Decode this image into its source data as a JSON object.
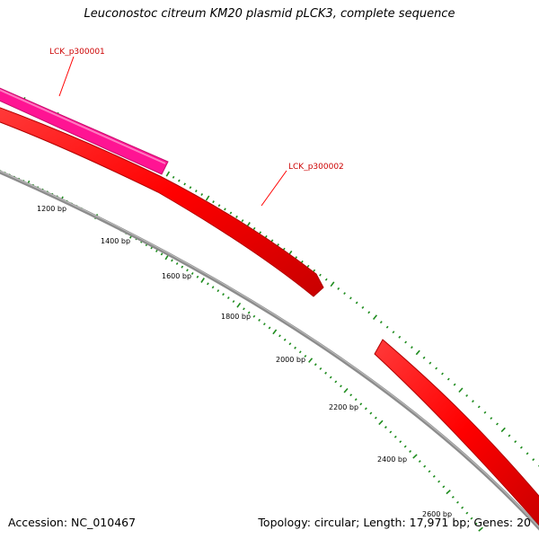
{
  "title": "Leuconostoc citreum KM20 plasmid pLCK3, complete sequence",
  "footer": {
    "accession": "Accession: NC_010467",
    "summary": "Topology: circular; Length: 17,971 bp; Genes: 20"
  },
  "map": {
    "sequence_length_bp": 17971,
    "topology": "circular",
    "colors": {
      "backbone": "#8c8c8c",
      "forward_gene": "#ff0000",
      "highlight_gene": "#ff1493",
      "gc_ticks": "#1e8c1e",
      "label_line": "#ff0000",
      "label_text": "#cc0000"
    },
    "scale_labels": [
      {
        "bp": 1200,
        "text": "1200 bp"
      },
      {
        "bp": 1400,
        "text": "1400 bp"
      },
      {
        "bp": 1600,
        "text": "1600 bp"
      },
      {
        "bp": 1800,
        "text": "1800 bp"
      },
      {
        "bp": 2000,
        "text": "2000 bp"
      },
      {
        "bp": 2200,
        "text": "2200 bp"
      },
      {
        "bp": 2400,
        "text": "2400 bp"
      },
      {
        "bp": 2600,
        "text": "2600 bp"
      }
    ],
    "genes": [
      {
        "name": "LCK_p300001",
        "color": "#ff1493"
      },
      {
        "name": "LCK_p300002",
        "color": "#ff0000"
      },
      {
        "name": "",
        "color": "#ff0000"
      }
    ]
  }
}
